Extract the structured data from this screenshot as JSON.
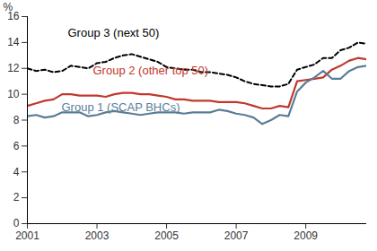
{
  "chart_data": {
    "type": "line",
    "y_label": "%",
    "x": [
      2001,
      2001.25,
      2001.5,
      2001.75,
      2002,
      2002.25,
      2002.5,
      2002.75,
      2003,
      2003.25,
      2003.5,
      2003.75,
      2004,
      2004.25,
      2004.5,
      2004.75,
      2005,
      2005.25,
      2005.5,
      2005.75,
      2006,
      2006.25,
      2006.5,
      2006.75,
      2007,
      2007.25,
      2007.5,
      2007.75,
      2008,
      2008.25,
      2008.5,
      2008.75,
      2009,
      2009.25,
      2009.5,
      2009.75,
      2010,
      2010.25,
      2010.5,
      2010.75
    ],
    "series": [
      {
        "name": "Group 3 (next 50)",
        "color": "#000000",
        "line_style": "dashed",
        "values": [
          12.0,
          11.8,
          11.9,
          11.7,
          11.8,
          12.2,
          12.1,
          12.0,
          12.4,
          12.5,
          12.8,
          13.0,
          13.1,
          12.9,
          12.7,
          12.5,
          12.1,
          12.0,
          11.9,
          11.9,
          11.7,
          11.7,
          11.6,
          11.5,
          11.3,
          11.0,
          10.8,
          10.7,
          10.6,
          10.6,
          10.8,
          11.9,
          12.1,
          12.3,
          12.8,
          12.8,
          13.4,
          13.6,
          14.0,
          13.9
        ]
      },
      {
        "name": "Group 2 (other top 50)",
        "color": "#c0392b",
        "line_style": "solid",
        "values": [
          9.1,
          9.3,
          9.5,
          9.6,
          10.0,
          10.0,
          9.9,
          9.9,
          9.9,
          9.8,
          10.0,
          10.1,
          10.1,
          10.0,
          10.0,
          9.9,
          9.8,
          9.6,
          9.6,
          9.5,
          9.5,
          9.5,
          9.4,
          9.4,
          9.4,
          9.3,
          9.1,
          8.9,
          8.9,
          9.1,
          9.0,
          11.0,
          11.1,
          11.2,
          11.3,
          11.9,
          12.2,
          12.6,
          12.8,
          12.7
        ]
      },
      {
        "name": "Group 1 (SCAP BHCs)",
        "color": "#5a7d96",
        "line_style": "solid",
        "values": [
          8.3,
          8.4,
          8.2,
          8.3,
          8.6,
          8.6,
          8.6,
          8.3,
          8.4,
          8.6,
          8.7,
          8.6,
          8.5,
          8.4,
          8.5,
          8.6,
          8.6,
          8.6,
          8.5,
          8.6,
          8.6,
          8.6,
          8.8,
          8.7,
          8.5,
          8.4,
          8.2,
          7.7,
          8.0,
          8.4,
          8.3,
          10.2,
          10.9,
          11.3,
          11.8,
          11.2,
          11.2,
          11.8,
          12.1,
          12.2
        ]
      }
    ],
    "xlim": [
      2001,
      2010.75
    ],
    "xticks": [
      2001,
      2003,
      2005,
      2007,
      2009
    ],
    "ylim": [
      0,
      16
    ],
    "yticks": [
      0,
      2,
      4,
      6,
      8,
      10,
      12,
      14,
      16
    ],
    "grid": false
  }
}
